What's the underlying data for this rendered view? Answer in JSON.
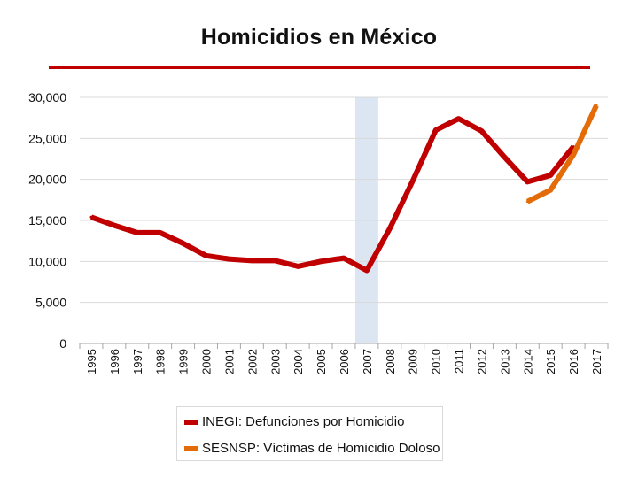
{
  "title": "Homicidios en México",
  "colors": {
    "title_rule": "#c00000",
    "highlight_band": "#dce6f2",
    "grid": "#d9d9d9"
  },
  "chart_data": {
    "type": "line",
    "title": "Homicidios en México",
    "xlabel": "",
    "ylabel": "",
    "ylim": [
      0,
      30000
    ],
    "yticks": [
      0,
      5000,
      10000,
      15000,
      20000,
      25000,
      30000
    ],
    "ytick_labels": [
      "0",
      "5,000",
      "10,000",
      "15,000",
      "20,000",
      "25,000",
      "30,000"
    ],
    "categories": [
      "1995",
      "1996",
      "1997",
      "1998",
      "1999",
      "2000",
      "2001",
      "2002",
      "2003",
      "2004",
      "2005",
      "2006",
      "2007",
      "2008",
      "2009",
      "2010",
      "2011",
      "2012",
      "2013",
      "2014",
      "2015",
      "2016",
      "2017"
    ],
    "grid": true,
    "legend_position": "bottom",
    "highlight_category": "2007",
    "series": [
      {
        "name": "INEGI: Defunciones por Homicidio",
        "color": "#c00000",
        "values": [
          15400,
          14400,
          13500,
          13500,
          12200,
          10700,
          10300,
          10100,
          10100,
          9400,
          10000,
          10400,
          8900,
          14000,
          19800,
          26000,
          27400,
          25900,
          22700,
          19700,
          20500,
          24000,
          null
        ]
      },
      {
        "name": "SESNSP: Víctimas de Homicidio Doloso",
        "color": "#e36c09",
        "values": [
          null,
          null,
          null,
          null,
          null,
          null,
          null,
          null,
          null,
          null,
          null,
          null,
          null,
          null,
          null,
          null,
          null,
          null,
          null,
          17300,
          18700,
          23000,
          29000
        ]
      }
    ]
  }
}
